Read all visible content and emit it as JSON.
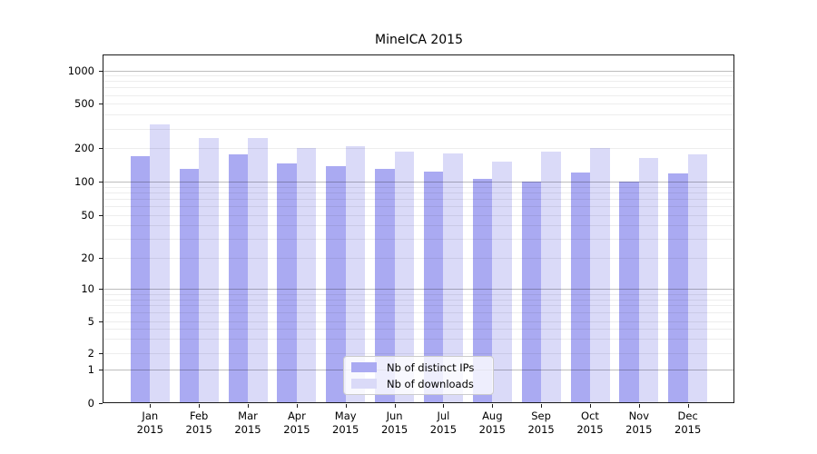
{
  "title": "MineICA 2015",
  "chart_data": {
    "type": "bar",
    "title": "MineICA 2015",
    "categories": [
      "Jan",
      "Feb",
      "Mar",
      "Apr",
      "May",
      "Jun",
      "Jul",
      "Aug",
      "Sep",
      "Oct",
      "Nov",
      "Dec"
    ],
    "year": "2015",
    "series": [
      {
        "name": "Nb of distinct IPs",
        "color": "#aaaaf2",
        "values": [
          170,
          131,
          178,
          145,
          139,
          131,
          124,
          106,
          100,
          122,
          101,
          118
        ]
      },
      {
        "name": "Nb of downloads",
        "color": "#dadaf8",
        "values": [
          326,
          246,
          246,
          201,
          207,
          186,
          180,
          152,
          187,
          200,
          165,
          175
        ]
      }
    ],
    "yticks": [
      0,
      1,
      2,
      5,
      10,
      20,
      50,
      100,
      200,
      500,
      1000
    ],
    "yscale": "symlog",
    "ylim": [
      0,
      1400
    ],
    "grid": true,
    "legend_position": "lower center"
  }
}
